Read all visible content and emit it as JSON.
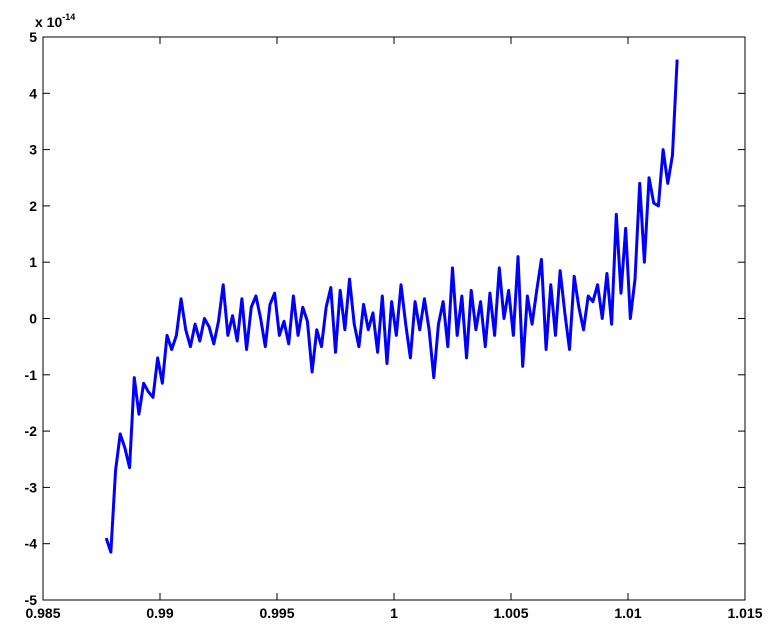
{
  "chart_data": {
    "type": "line",
    "y_multiplier": {
      "base": "x 10",
      "exponent": "-14"
    },
    "xlim": [
      0.985,
      1.015
    ],
    "xticks": [
      0.985,
      0.99,
      0.995,
      1,
      1.005,
      1.01,
      1.015
    ],
    "ylim": [
      -5,
      5
    ],
    "yticks": [
      -5,
      -4,
      -3,
      -2,
      -1,
      0,
      1,
      2,
      3,
      4,
      5
    ],
    "grid": false,
    "series": [
      {
        "color": "#0000ff",
        "x": [
          0.9877,
          0.9879,
          0.9881,
          0.9883,
          0.9885,
          0.9887,
          0.9889,
          0.9891,
          0.9893,
          0.9895,
          0.9897,
          0.9899,
          0.9901,
          0.9903,
          0.9905,
          0.9907,
          0.9909,
          0.9911,
          0.9913,
          0.9915,
          0.9917,
          0.9919,
          0.9921,
          0.9923,
          0.9925,
          0.9927,
          0.9929,
          0.9931,
          0.9933,
          0.9935,
          0.9937,
          0.9939,
          0.9941,
          0.9943,
          0.9945,
          0.9947,
          0.9949,
          0.9951,
          0.9953,
          0.9955,
          0.9957,
          0.9959,
          0.9961,
          0.9963,
          0.9965,
          0.9967,
          0.9969,
          0.9971,
          0.9973,
          0.9975,
          0.9977,
          0.9979,
          0.9981,
          0.9983,
          0.9985,
          0.9987,
          0.9989,
          0.9991,
          0.9993,
          0.9995,
          0.9997,
          0.9999,
          1.0001,
          1.0003,
          1.0005,
          1.0007,
          1.0009,
          1.0011,
          1.0013,
          1.0015,
          1.0017,
          1.0019,
          1.0021,
          1.0023,
          1.0025,
          1.0027,
          1.0029,
          1.0031,
          1.0033,
          1.0035,
          1.0037,
          1.0039,
          1.0041,
          1.0043,
          1.0045,
          1.0047,
          1.0049,
          1.0051,
          1.0053,
          1.0055,
          1.0057,
          1.0059,
          1.0061,
          1.0063,
          1.0065,
          1.0067,
          1.0069,
          1.0071,
          1.0073,
          1.0075,
          1.0077,
          1.0079,
          1.0081,
          1.0083,
          1.0085,
          1.0087,
          1.0089,
          1.0091,
          1.0093,
          1.0095,
          1.0097,
          1.0099,
          1.0101,
          1.0103,
          1.0105,
          1.0107,
          1.0109,
          1.0111,
          1.0113,
          1.0115,
          1.0117,
          1.0119,
          1.0121
        ],
        "values": [
          -3.9,
          -4.15,
          -2.7,
          -2.05,
          -2.3,
          -2.65,
          -1.05,
          -1.7,
          -1.15,
          -1.3,
          -1.4,
          -0.7,
          -1.15,
          -0.3,
          -0.55,
          -0.3,
          0.35,
          -0.2,
          -0.5,
          -0.1,
          -0.4,
          0.0,
          -0.15,
          -0.45,
          -0.05,
          0.6,
          -0.3,
          0.05,
          -0.4,
          0.35,
          -0.55,
          0.2,
          0.4,
          0.0,
          -0.5,
          0.25,
          0.45,
          -0.3,
          -0.05,
          -0.45,
          0.4,
          -0.3,
          0.2,
          -0.05,
          -0.95,
          -0.2,
          -0.5,
          0.2,
          0.55,
          -0.6,
          0.5,
          -0.2,
          0.7,
          -0.1,
          -0.5,
          0.25,
          -0.2,
          0.1,
          -0.6,
          0.4,
          -0.8,
          0.3,
          -0.3,
          0.6,
          -0.1,
          -0.7,
          0.3,
          -0.2,
          0.35,
          -0.2,
          -1.05,
          -0.1,
          0.3,
          -0.5,
          0.9,
          -0.3,
          0.4,
          -0.7,
          0.5,
          -0.2,
          0.3,
          -0.5,
          0.45,
          -0.3,
          0.9,
          0.0,
          0.5,
          -0.3,
          1.1,
          -0.85,
          0.4,
          -0.1,
          0.5,
          1.05,
          -0.55,
          0.6,
          -0.3,
          0.85,
          0.1,
          -0.55,
          0.75,
          0.2,
          -0.2,
          0.4,
          0.3,
          0.6,
          0.0,
          0.8,
          -0.1,
          1.85,
          0.45,
          1.6,
          0.0,
          0.7,
          2.4,
          1.0,
          2.5,
          2.05,
          2.0,
          3.0,
          2.4,
          2.9,
          4.6
        ]
      }
    ]
  }
}
